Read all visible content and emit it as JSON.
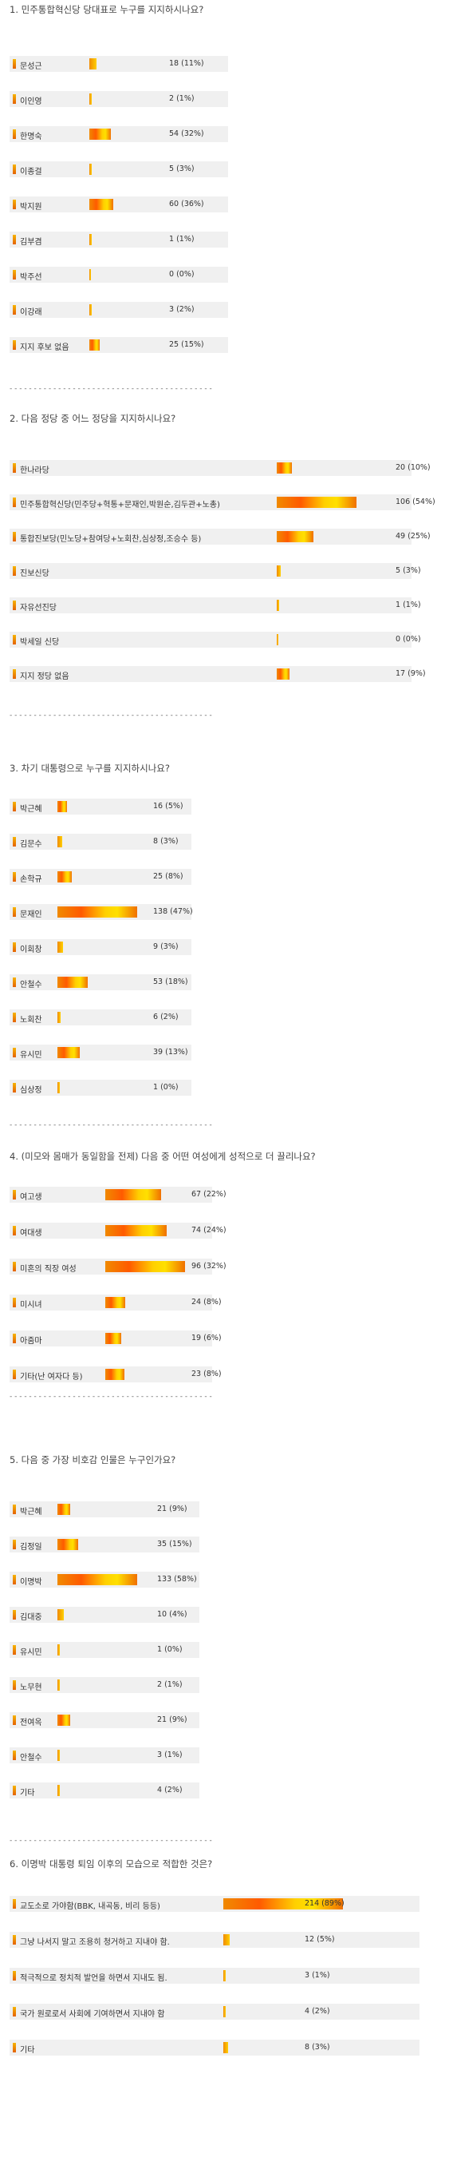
{
  "polls": [
    {
      "question": "1. 민주통합혁신당 당대표로 누구를 지지하시나요?",
      "max": 60,
      "options": [
        {
          "label": "문성근",
          "count": "18 (11%)",
          "value": 18
        },
        {
          "label": "이인영",
          "count": "2 (1%)",
          "value": 2
        },
        {
          "label": "한명숙",
          "count": "54 (32%)",
          "value": 54
        },
        {
          "label": "이종걸",
          "count": "5 (3%)",
          "value": 5
        },
        {
          "label": "박지원",
          "count": "60 (36%)",
          "value": 60
        },
        {
          "label": "김부겸",
          "count": "1 (1%)",
          "value": 1
        },
        {
          "label": "박주선",
          "count": "0 (0%)",
          "value": 0
        },
        {
          "label": "이강래",
          "count": "3 (2%)",
          "value": 3
        },
        {
          "label": "지지 후보 없음",
          "count": "25 (15%)",
          "value": 25
        }
      ]
    },
    {
      "question": "2. 다음 정당 중 어느 정당을 지지하시나요?",
      "max": 106,
      "options": [
        {
          "label": "한나라당",
          "count": "20 (10%)",
          "value": 20
        },
        {
          "label": "민주통합혁신당(민주당+혁통+문재인,박원순,김두관+노총)",
          "count": "106 (54%)",
          "value": 106
        },
        {
          "label": "통합진보당(민노당+참여당+노회찬,심상정,조승수 등)",
          "count": "49 (25%)",
          "value": 49
        },
        {
          "label": "진보신당",
          "count": "5 (3%)",
          "value": 5
        },
        {
          "label": "자유선진당",
          "count": "1 (1%)",
          "value": 1
        },
        {
          "label": "박세일 신당",
          "count": "0 (0%)",
          "value": 0
        },
        {
          "label": "지지 정당 없음",
          "count": "17 (9%)",
          "value": 17
        }
      ]
    },
    {
      "question": "3. 차기 대통령으로 누구를 지지하시나요?",
      "max": 138,
      "options": [
        {
          "label": "박근혜",
          "count": "16 (5%)",
          "value": 16
        },
        {
          "label": "김문수",
          "count": "8 (3%)",
          "value": 8
        },
        {
          "label": "손학규",
          "count": "25 (8%)",
          "value": 25
        },
        {
          "label": "문재인",
          "count": "138 (47%)",
          "value": 138
        },
        {
          "label": "이회창",
          "count": "9 (3%)",
          "value": 9
        },
        {
          "label": "안철수",
          "count": "53 (18%)",
          "value": 53
        },
        {
          "label": "노회찬",
          "count": "6 (2%)",
          "value": 6
        },
        {
          "label": "유시민",
          "count": "39 (13%)",
          "value": 39
        },
        {
          "label": "심상정",
          "count": "1 (0%)",
          "value": 1
        }
      ]
    },
    {
      "question": "4. (미모와 몸매가 동일함을 전제) 다음 중 어떤 여성에게 성적으로 더 끌리나요?",
      "max": 96,
      "options": [
        {
          "label": "여고생",
          "count": "67 (22%)",
          "value": 67
        },
        {
          "label": "여대생",
          "count": "74 (24%)",
          "value": 74
        },
        {
          "label": "미혼의 직장 여성",
          "count": "96 (32%)",
          "value": 96
        },
        {
          "label": "미시녀",
          "count": "24 (8%)",
          "value": 24
        },
        {
          "label": "아줌마",
          "count": "19 (6%)",
          "value": 19
        },
        {
          "label": "기타(난 여자다 등)",
          "count": "23 (8%)",
          "value": 23
        }
      ]
    },
    {
      "question": "5. 다음 중 가장 비호감 인물은 누구인가요?",
      "max": 133,
      "options": [
        {
          "label": "박근혜",
          "count": "21 (9%)",
          "value": 21
        },
        {
          "label": "김정일",
          "count": "35 (15%)",
          "value": 35
        },
        {
          "label": "이명박",
          "count": "133 (58%)",
          "value": 133
        },
        {
          "label": "김대중",
          "count": "10 (4%)",
          "value": 10
        },
        {
          "label": "유시민",
          "count": "1 (0%)",
          "value": 1
        },
        {
          "label": "노무현",
          "count": "2 (1%)",
          "value": 2
        },
        {
          "label": "전여옥",
          "count": "21 (9%)",
          "value": 21
        },
        {
          "label": "안철수",
          "count": "3 (1%)",
          "value": 3
        },
        {
          "label": "기타",
          "count": "4 (2%)",
          "value": 4
        }
      ]
    },
    {
      "question": "6. 이명박 대통령 퇴임 이후의 모습으로 적합한 것은?",
      "max": 214,
      "options": [
        {
          "label": "교도소로 가야함(BBK, 내곡동, 비리 등등)",
          "count": "214 (89%)",
          "value": 214
        },
        {
          "label": "그냥 나서지 말고 조용히 청거하고 지내야 함.",
          "count": "12 (5%)",
          "value": 12
        },
        {
          "label": "적극적으로 정치적 발언을 하면서 지내도 됨.",
          "count": "3 (1%)",
          "value": 3
        },
        {
          "label": "국가 원로로서 사회에 기여하면서 지내야 함",
          "count": "4 (2%)",
          "value": 4
        },
        {
          "label": "기타",
          "count": "8 (3%)",
          "value": 8
        }
      ]
    }
  ],
  "divider": "- - - - - - - - - - - - - - - - - - - - - - - - - - - - - - - - - - - - - - - - - -"
}
